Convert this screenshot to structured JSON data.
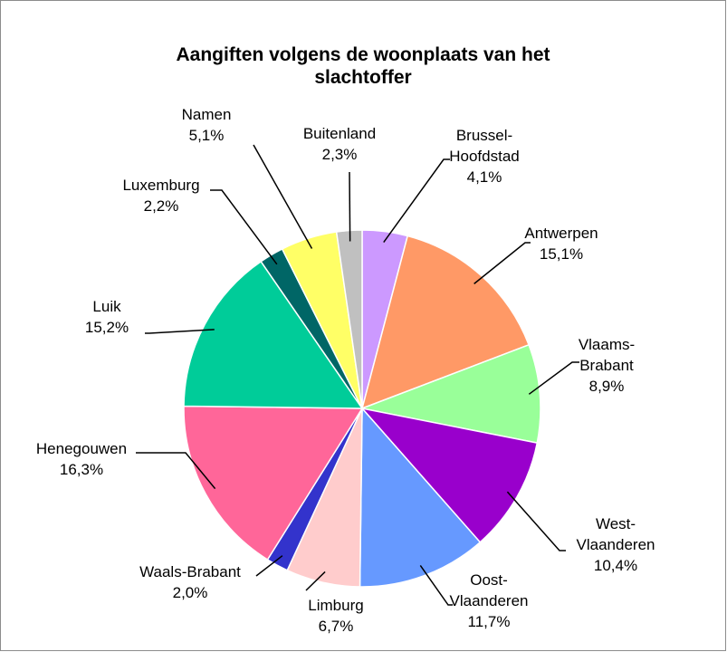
{
  "chart_data": {
    "type": "pie",
    "title": "Aangiften volgens de woonplaats van het\nslachtoffer",
    "categories": [
      "Brussel-\nHoofdstad",
      "Antwerpen",
      "Vlaams-\nBrabant",
      "West-\nVlaanderen",
      "Oost-\nVlaanderen",
      "Limburg",
      "Waals-Brabant",
      "Henegouwen",
      "Luik",
      "Luxemburg",
      "Namen",
      "Buitenland"
    ],
    "values": [
      4.1,
      15.1,
      8.9,
      10.4,
      11.7,
      6.7,
      2.0,
      16.3,
      15.2,
      2.2,
      5.1,
      2.3
    ],
    "value_labels": [
      "4,1%",
      "15,1%",
      "8,9%",
      "10,4%",
      "11,7%",
      "6,7%",
      "2,0%",
      "16,3%",
      "15,2%",
      "2,2%",
      "5,1%",
      "2,3%"
    ],
    "colors": [
      "#cc99ff",
      "#ff9966",
      "#99ff99",
      "#9900cc",
      "#6699ff",
      "#ffcccc",
      "#3333cc",
      "#ff6699",
      "#00cc99",
      "#006666",
      "#ffff66",
      "#c0c0c0"
    ]
  }
}
